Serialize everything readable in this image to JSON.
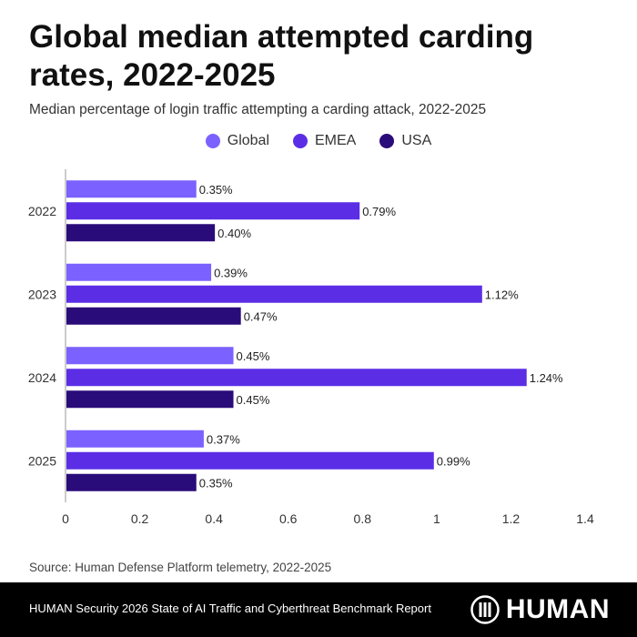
{
  "chart_data": {
    "type": "bar",
    "orientation": "horizontal",
    "title": "Global median attempted carding rates, 2022-2025",
    "subtitle": "Median percentage of login traffic attempting a carding attack, 2022-2025",
    "categories": [
      "2022",
      "2023",
      "2024",
      "2025"
    ],
    "series": [
      {
        "name": "Global",
        "color": "#7b61ff",
        "values": [
          0.35,
          0.39,
          0.45,
          0.37
        ],
        "labels": [
          "0.35%",
          "0.39%",
          "0.45%",
          "0.37%"
        ]
      },
      {
        "name": "EMEA",
        "color": "#5b2ee6",
        "values": [
          0.79,
          1.12,
          1.24,
          0.99
        ],
        "labels": [
          "0.79%",
          "1.12%",
          "1.24%",
          "0.99%"
        ]
      },
      {
        "name": "USA",
        "color": "#2a0b7a",
        "values": [
          0.4,
          0.47,
          0.45,
          0.35
        ],
        "labels": [
          "0.40%",
          "0.47%",
          "0.45%",
          "0.35%"
        ]
      }
    ],
    "xlim": [
      0,
      1.4
    ],
    "xticks": [
      "0",
      "0.2",
      "0.4",
      "0.6",
      "0.8",
      "1",
      "1.2",
      "1.4"
    ],
    "xlabel": "",
    "ylabel": "",
    "grid": false,
    "legend_position": "top-center"
  },
  "source": "Source: Human Defense Platform telemetry, 2022-2025",
  "footer": {
    "text": "HUMAN Security 2026 State of AI Traffic and Cyberthreat Benchmark Report",
    "logo_text": "HUMAN"
  }
}
